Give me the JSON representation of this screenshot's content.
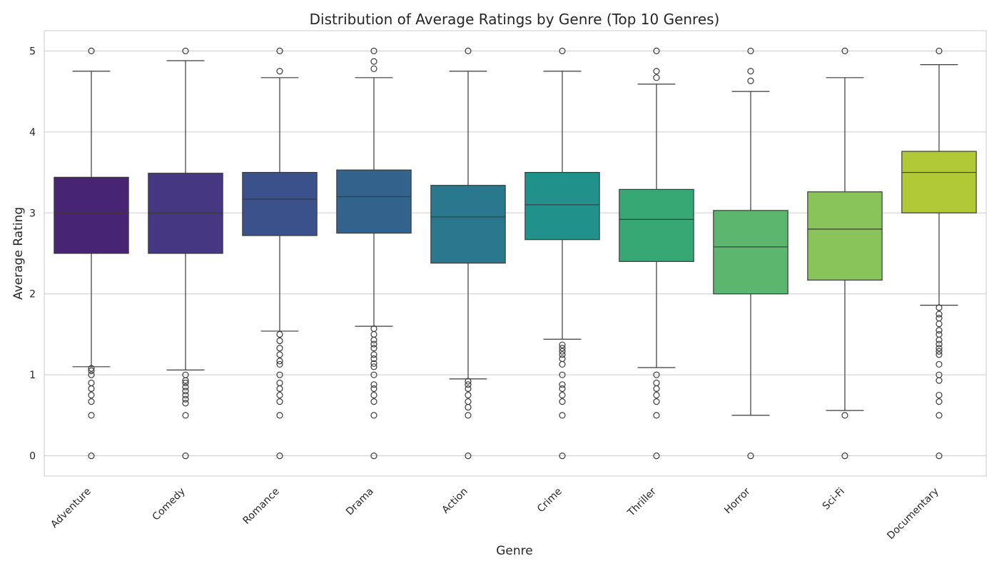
{
  "chart_data": {
    "type": "box",
    "title": "Distribution of Average Ratings by Genre (Top 10 Genres)",
    "xlabel": "Genre",
    "ylabel": "Average Rating",
    "ylim": [
      -0.25,
      5.25
    ],
    "yticks": [
      0,
      1,
      2,
      3,
      4,
      5
    ],
    "grid": true,
    "categories": [
      "Adventure",
      "Comedy",
      "Romance",
      "Drama",
      "Action",
      "Crime",
      "Thriller",
      "Horror",
      "Sci-Fi",
      "Documentary"
    ],
    "boxes": [
      {
        "category": "Adventure",
        "color": "#482475",
        "whisker_low": 1.1,
        "q1": 2.5,
        "median": 3.0,
        "q3": 3.44,
        "whisker_high": 4.75,
        "outliers": [
          5.0,
          1.08,
          1.05,
          1.0,
          0.9,
          0.83,
          0.75,
          0.67,
          0.5,
          0.0
        ]
      },
      {
        "category": "Comedy",
        "color": "#453781",
        "whisker_low": 1.06,
        "q1": 2.5,
        "median": 3.0,
        "q3": 3.49,
        "whisker_high": 4.88,
        "outliers": [
          5.0,
          1.0,
          0.93,
          0.9,
          0.85,
          0.8,
          0.75,
          0.7,
          0.65,
          0.5,
          0.0
        ]
      },
      {
        "category": "Romance",
        "color": "#3b518b",
        "whisker_low": 1.54,
        "q1": 2.72,
        "median": 3.17,
        "q3": 3.5,
        "whisker_high": 4.67,
        "outliers": [
          5.0,
          4.75,
          1.5,
          1.42,
          1.33,
          1.25,
          1.17,
          1.13,
          1.0,
          0.9,
          0.83,
          0.75,
          0.67,
          0.5,
          0.0
        ]
      },
      {
        "category": "Drama",
        "color": "#33638d",
        "whisker_low": 1.6,
        "q1": 2.75,
        "median": 3.2,
        "q3": 3.53,
        "whisker_high": 4.67,
        "outliers": [
          5.0,
          4.87,
          4.78,
          1.57,
          1.5,
          1.43,
          1.38,
          1.33,
          1.25,
          1.2,
          1.14,
          1.1,
          1.0,
          0.88,
          0.83,
          0.75,
          0.67,
          0.5,
          0.0
        ]
      },
      {
        "category": "Action",
        "color": "#2a788e",
        "whisker_low": 0.95,
        "q1": 2.38,
        "median": 2.95,
        "q3": 3.34,
        "whisker_high": 4.75,
        "outliers": [
          5.0,
          0.92,
          0.88,
          0.83,
          0.75,
          0.67,
          0.6,
          0.5,
          0.0
        ]
      },
      {
        "category": "Crime",
        "color": "#21918c",
        "whisker_low": 1.44,
        "q1": 2.67,
        "median": 3.1,
        "q3": 3.5,
        "whisker_high": 4.75,
        "outliers": [
          5.0,
          1.37,
          1.33,
          1.29,
          1.25,
          1.2,
          1.13,
          1.0,
          0.88,
          0.83,
          0.75,
          0.67,
          0.5,
          0.0
        ]
      },
      {
        "category": "Thriller",
        "color": "#37a774",
        "whisker_low": 1.09,
        "q1": 2.4,
        "median": 2.92,
        "q3": 3.29,
        "whisker_high": 4.59,
        "outliers": [
          5.0,
          4.75,
          4.67,
          1.0,
          0.9,
          0.83,
          0.75,
          0.67,
          0.5,
          0.0
        ]
      },
      {
        "category": "Horror",
        "color": "#5cb66e",
        "whisker_low": 0.5,
        "q1": 2.0,
        "median": 2.58,
        "q3": 3.03,
        "whisker_high": 4.5,
        "outliers": [
          5.0,
          4.75,
          4.63,
          0.0
        ]
      },
      {
        "category": "Sci-Fi",
        "color": "#88c45a",
        "whisker_low": 0.56,
        "q1": 2.17,
        "median": 2.8,
        "q3": 3.26,
        "whisker_high": 4.67,
        "outliers": [
          5.0,
          0.5,
          0.0
        ]
      },
      {
        "category": "Documentary",
        "color": "#b1c936",
        "whisker_low": 1.86,
        "q1": 3.0,
        "median": 3.5,
        "q3": 3.76,
        "whisker_high": 4.83,
        "outliers": [
          5.0,
          1.83,
          1.75,
          1.7,
          1.63,
          1.55,
          1.5,
          1.43,
          1.38,
          1.33,
          1.29,
          1.25,
          1.13,
          1.0,
          0.93,
          0.75,
          0.67,
          0.5,
          0.0
        ]
      }
    ]
  }
}
